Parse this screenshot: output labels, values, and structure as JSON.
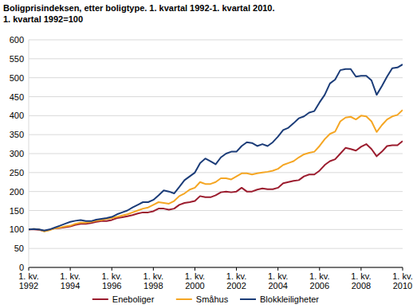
{
  "chart_data": {
    "type": "line",
    "title": "Boligprisindeksen, etter boligtype. 1. kvartal 1992-1. kvartal 2010.",
    "subtitle": "1. kvartal 1992=100",
    "categories": [
      "1. kv. 1992",
      null,
      null,
      null,
      null,
      null,
      null,
      null,
      "1. kv. 1994",
      null,
      null,
      null,
      null,
      null,
      null,
      null,
      "1. kv. 1996",
      null,
      null,
      null,
      null,
      null,
      null,
      null,
      "1. kv. 1998",
      null,
      null,
      null,
      null,
      null,
      null,
      null,
      "1. kv. 2000",
      null,
      null,
      null,
      null,
      null,
      null,
      null,
      "1. kv. 2002",
      null,
      null,
      null,
      null,
      null,
      null,
      null,
      "1. kv. 2004",
      null,
      null,
      null,
      null,
      null,
      null,
      null,
      "1. kv. 2006",
      null,
      null,
      null,
      null,
      null,
      null,
      null,
      "1. kv. 2008",
      null,
      null,
      null,
      null,
      null,
      null,
      null,
      "1. kv. 2010"
    ],
    "series": [
      {
        "name": "Eneboliger",
        "color": "#9b1c2e",
        "values": [
          100,
          100,
          99,
          96,
          99,
          103,
          104,
          106,
          108,
          112,
          115,
          115,
          117,
          120,
          122,
          122,
          125,
          130,
          132,
          135,
          138,
          142,
          145,
          145,
          148,
          155,
          155,
          152,
          155,
          165,
          170,
          172,
          175,
          188,
          185,
          185,
          190,
          198,
          200,
          198,
          200,
          210,
          200,
          200,
          205,
          208,
          206,
          206,
          210,
          222,
          225,
          228,
          230,
          240,
          245,
          245,
          255,
          270,
          280,
          285,
          300,
          315,
          312,
          308,
          318,
          325,
          312,
          293,
          305,
          320,
          322,
          322,
          333
        ]
      },
      {
        "name": "Småhus",
        "color": "#f5a623",
        "values": [
          100,
          101,
          100,
          95,
          98,
          103,
          105,
          108,
          110,
          115,
          118,
          118,
          120,
          123,
          125,
          128,
          130,
          133,
          137,
          140,
          145,
          150,
          155,
          158,
          165,
          172,
          170,
          168,
          175,
          188,
          195,
          205,
          210,
          225,
          220,
          220,
          225,
          235,
          235,
          232,
          240,
          248,
          248,
          245,
          248,
          250,
          252,
          255,
          260,
          270,
          275,
          280,
          290,
          298,
          302,
          305,
          320,
          338,
          352,
          358,
          385,
          395,
          397,
          390,
          400,
          398,
          385,
          357,
          375,
          390,
          398,
          402,
          415
        ]
      },
      {
        "name": "Blokkleiligheter",
        "color": "#1b3c78",
        "values": [
          100,
          101,
          100,
          97,
          100,
          105,
          110,
          115,
          120,
          123,
          125,
          122,
          122,
          126,
          128,
          130,
          133,
          140,
          145,
          150,
          158,
          165,
          172,
          172,
          178,
          190,
          203,
          200,
          195,
          212,
          230,
          240,
          250,
          275,
          287,
          280,
          272,
          290,
          300,
          305,
          305,
          320,
          330,
          328,
          320,
          325,
          320,
          330,
          345,
          362,
          368,
          380,
          393,
          398,
          408,
          412,
          435,
          455,
          485,
          495,
          520,
          523,
          523,
          503,
          505,
          505,
          493,
          455,
          478,
          503,
          525,
          527,
          535
        ]
      }
    ],
    "ylim": [
      0,
      600
    ],
    "yticks": [
      0,
      50,
      100,
      150,
      200,
      250,
      300,
      350,
      400,
      450,
      500,
      550,
      600
    ],
    "grid": true,
    "legend": "bottom"
  }
}
